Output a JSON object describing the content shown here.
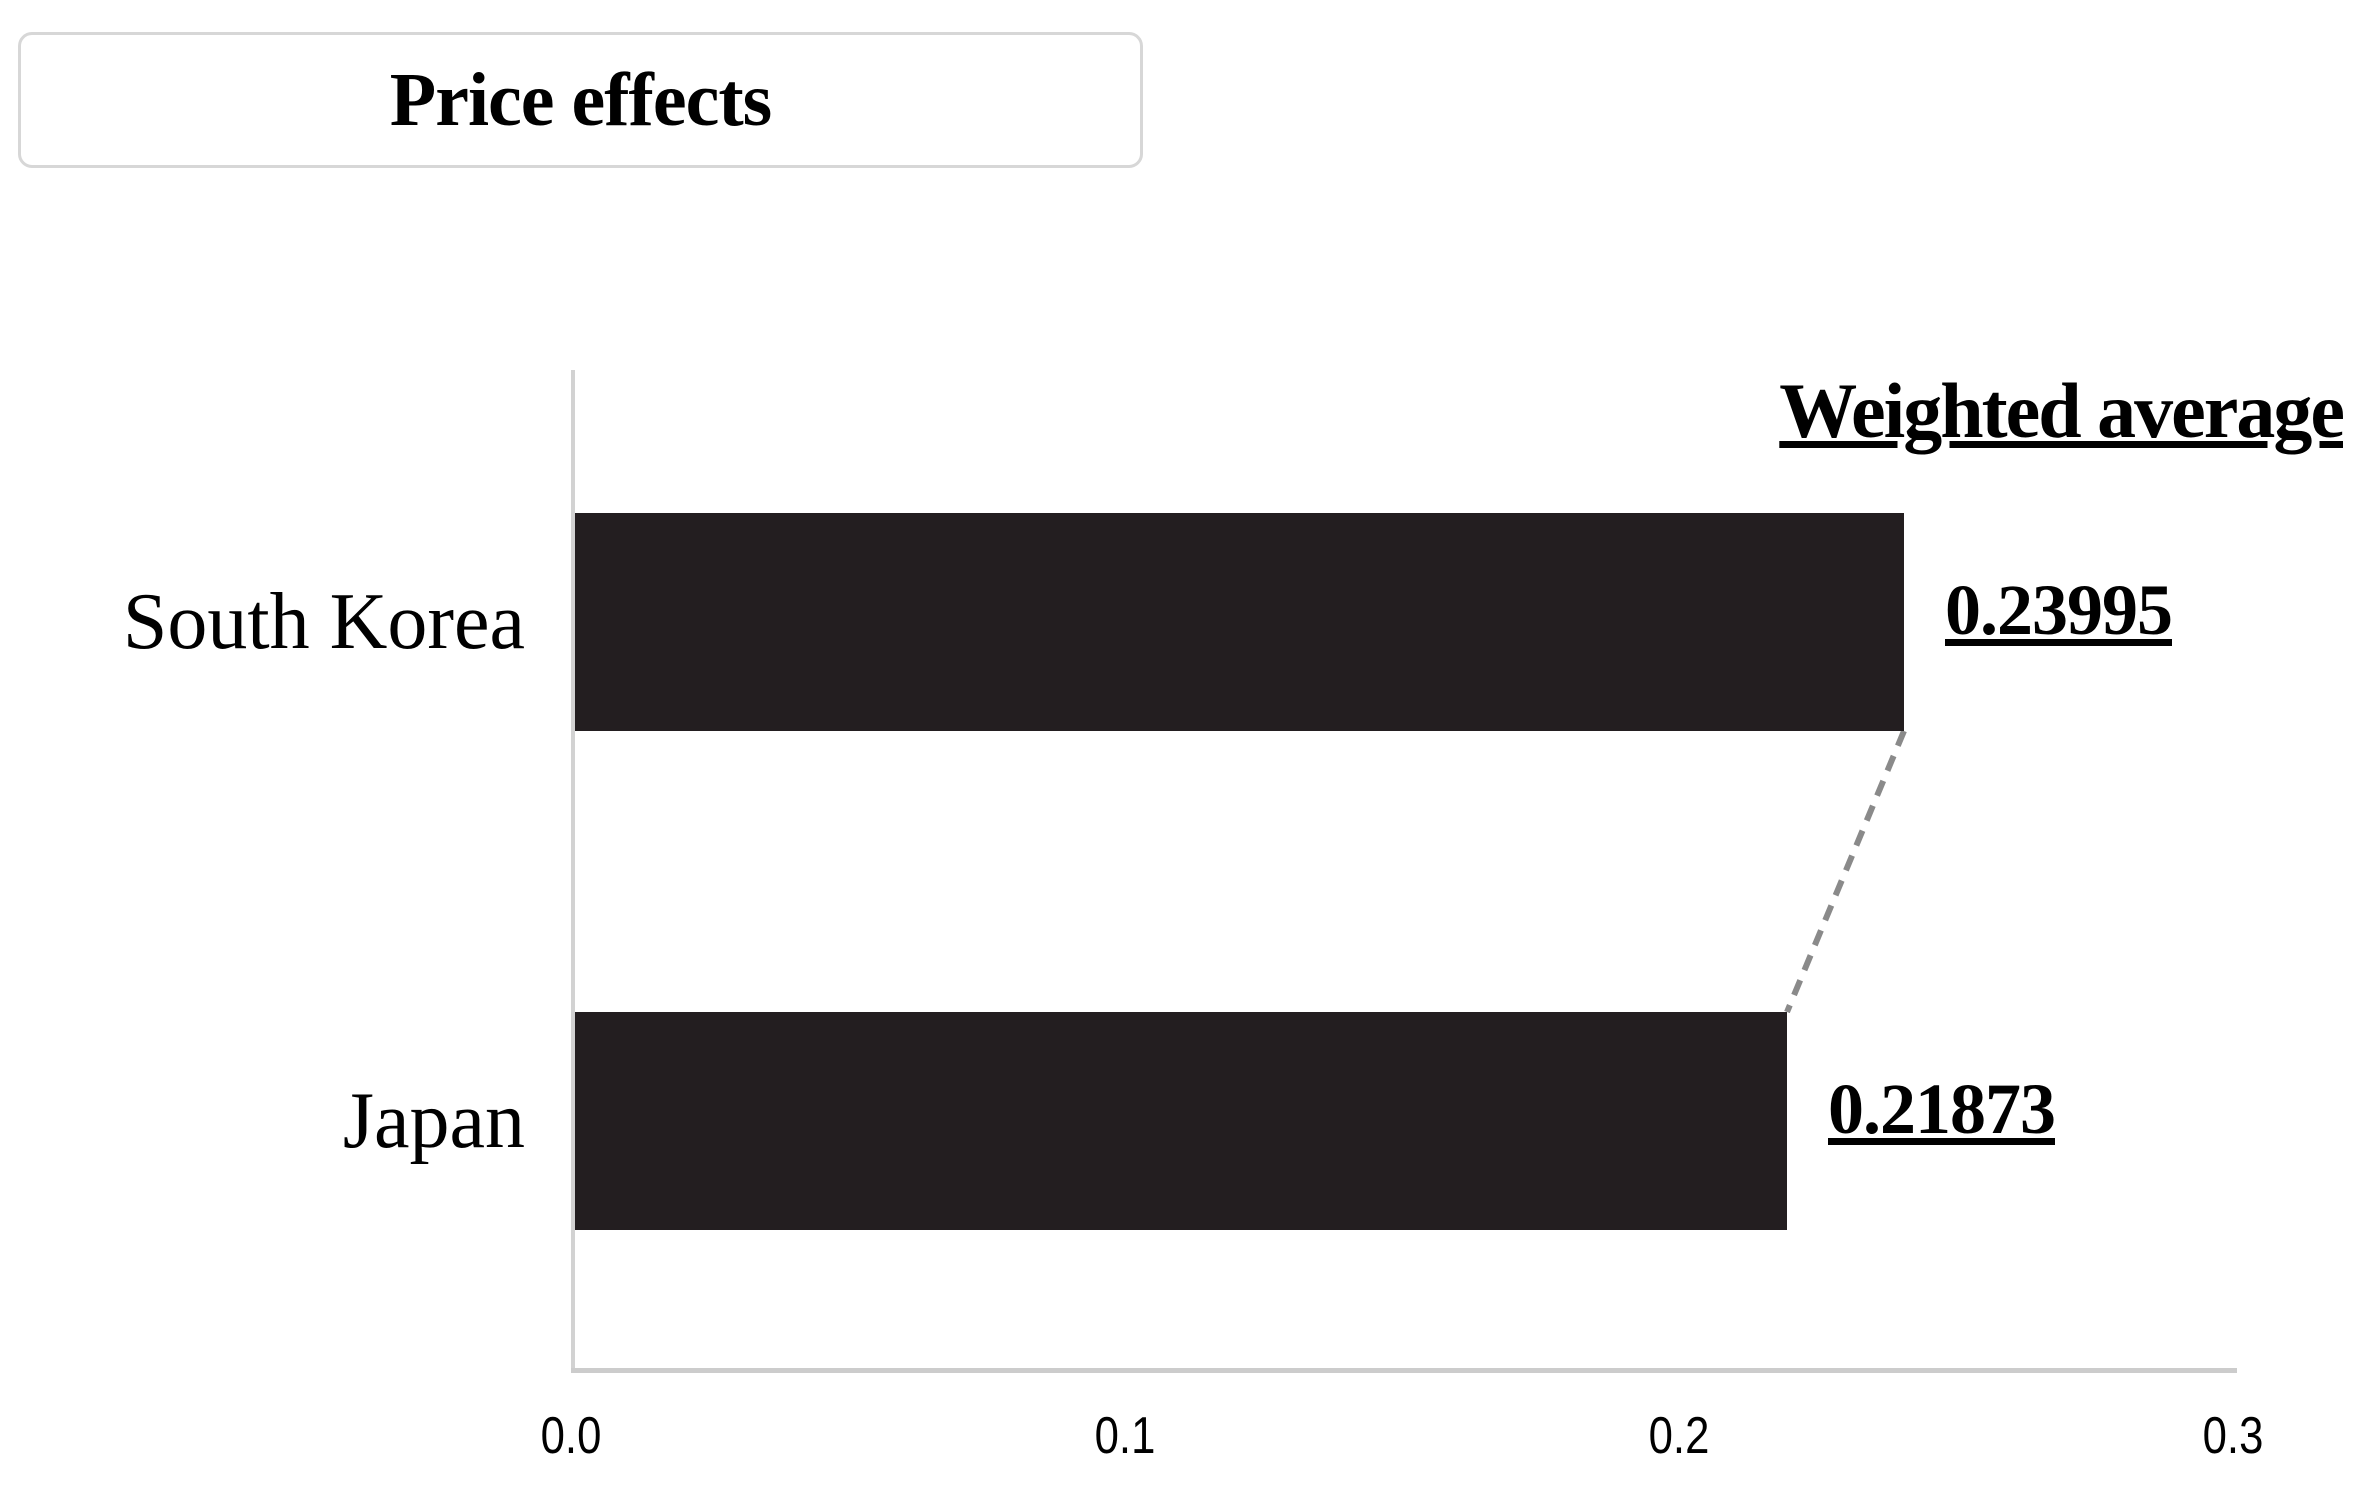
{
  "chart_data": {
    "type": "bar",
    "orientation": "horizontal",
    "title": "Price effects",
    "annotation_header": "Weighted average",
    "categories": [
      "South Korea",
      "Japan"
    ],
    "values": [
      0.23995,
      0.21873
    ],
    "value_labels": [
      "0.23995",
      "0.21873"
    ],
    "x_tick_labels": [
      "0.0",
      "0.1",
      "0.2",
      "0.3"
    ],
    "x_tick_values": [
      0,
      0.1,
      0.2,
      0.3
    ],
    "xlim": [
      0,
      0.3
    ],
    "grid": "off",
    "legend": "none",
    "connector": "dashed line linking ends of South Korea and Japan bars",
    "colors": {
      "bar": "#231e20",
      "axis": "#cfcfcf",
      "connector": "#8a8a8a",
      "title_box_border": "#d7d7d7",
      "text": "#000000",
      "background": "#ffffff"
    }
  }
}
